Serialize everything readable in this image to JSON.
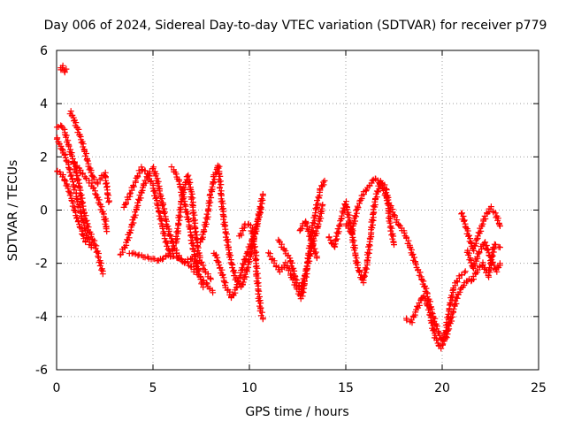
{
  "chart_data": {
    "type": "scatter",
    "title": "Day 006 of 2024, Sidereal Day-to-day VTEC variation (SDTVAR) for receiver p779",
    "xlabel": "GPS time / hours",
    "ylabel": "SDTVAR / TECUs",
    "xlim": [
      0,
      25
    ],
    "ylim": [
      -6,
      6
    ],
    "xticks": [
      0,
      5,
      10,
      15,
      20,
      25
    ],
    "yticks": [
      -6,
      -4,
      -2,
      0,
      2,
      4,
      6
    ],
    "grid": true,
    "marker": "+",
    "series": [
      {
        "name": "SDTVAR",
        "color": "#ff0000",
        "tracks": [
          [
            [
              0.0,
              3.1
            ],
            [
              0.2,
              3.2
            ],
            [
              0.4,
              3.0
            ],
            [
              0.6,
              2.5
            ],
            [
              0.8,
              2.0
            ],
            [
              1.0,
              1.5
            ],
            [
              1.2,
              0.8
            ],
            [
              1.4,
              0.0
            ],
            [
              1.6,
              -0.6
            ],
            [
              1.8,
              -1.0
            ],
            [
              2.0,
              -1.3
            ],
            [
              2.2,
              -1.8
            ],
            [
              2.4,
              -2.4
            ]
          ],
          [
            [
              0.0,
              2.7
            ],
            [
              0.2,
              2.4
            ],
            [
              0.4,
              2.1
            ],
            [
              0.6,
              1.7
            ],
            [
              0.8,
              1.2
            ],
            [
              1.0,
              0.6
            ],
            [
              1.2,
              0.0
            ],
            [
              1.4,
              -0.5
            ],
            [
              1.6,
              -1.0
            ],
            [
              1.8,
              -1.4
            ]
          ],
          [
            [
              0.0,
              1.5
            ],
            [
              0.3,
              1.3
            ],
            [
              0.5,
              1.0
            ],
            [
              0.7,
              0.6
            ],
            [
              0.9,
              0.1
            ],
            [
              1.1,
              -0.4
            ],
            [
              1.3,
              -0.8
            ],
            [
              1.5,
              -1.2
            ]
          ],
          [
            [
              0.7,
              3.7
            ],
            [
              0.9,
              3.4
            ],
            [
              1.1,
              3.0
            ],
            [
              1.3,
              2.6
            ],
            [
              1.5,
              2.1
            ],
            [
              1.7,
              1.6
            ],
            [
              1.9,
              1.2
            ],
            [
              2.1,
              1.0
            ],
            [
              2.3,
              1.2
            ],
            [
              2.5,
              1.4
            ],
            [
              2.6,
              0.9
            ],
            [
              2.7,
              0.3
            ]
          ],
          [
            [
              0.9,
              1.8
            ],
            [
              1.2,
              1.5
            ],
            [
              1.5,
              1.2
            ],
            [
              1.8,
              1.0
            ],
            [
              2.1,
              0.5
            ],
            [
              2.3,
              0.1
            ],
            [
              2.5,
              -0.3
            ],
            [
              2.6,
              -0.8
            ]
          ],
          [
            [
              0.2,
              5.3
            ],
            [
              0.3,
              5.4
            ],
            [
              0.4,
              5.2
            ],
            [
              0.5,
              5.3
            ]
          ],
          [
            [
              3.3,
              -1.7
            ],
            [
              3.6,
              -1.3
            ],
            [
              3.9,
              -0.6
            ],
            [
              4.2,
              0.2
            ],
            [
              4.5,
              0.9
            ],
            [
              4.8,
              1.4
            ],
            [
              5.0,
              1.6
            ],
            [
              5.2,
              1.2
            ],
            [
              5.5,
              0.2
            ],
            [
              5.8,
              -0.8
            ],
            [
              6.2,
              -1.6
            ],
            [
              6.6,
              -2.0
            ],
            [
              7.0,
              -1.8
            ],
            [
              7.3,
              -2.2
            ]
          ],
          [
            [
              3.5,
              0.1
            ],
            [
              3.8,
              0.6
            ],
            [
              4.1,
              1.1
            ],
            [
              4.4,
              1.6
            ],
            [
              4.7,
              1.4
            ],
            [
              5.0,
              0.9
            ],
            [
              5.3,
              0.0
            ],
            [
              5.6,
              -1.0
            ],
            [
              5.9,
              -1.7
            ],
            [
              6.2,
              -1.2
            ],
            [
              6.5,
              0.5
            ],
            [
              6.8,
              1.3
            ],
            [
              7.0,
              0.6
            ],
            [
              7.2,
              -0.8
            ],
            [
              7.4,
              -1.8
            ],
            [
              7.7,
              -2.3
            ],
            [
              8.0,
              -2.6
            ]
          ],
          [
            [
              3.8,
              -1.6
            ],
            [
              4.3,
              -1.7
            ],
            [
              4.8,
              -1.8
            ],
            [
              5.3,
              -1.9
            ],
            [
              5.8,
              -1.7
            ],
            [
              6.3,
              -1.8
            ],
            [
              6.8,
              -2.0
            ],
            [
              7.3,
              -2.4
            ],
            [
              7.8,
              -2.8
            ],
            [
              8.1,
              -3.1
            ]
          ],
          [
            [
              6.0,
              1.6
            ],
            [
              6.3,
              1.2
            ],
            [
              6.6,
              0.4
            ],
            [
              6.9,
              -0.6
            ],
            [
              7.1,
              -1.5
            ],
            [
              7.4,
              -2.4
            ],
            [
              7.6,
              -2.9
            ]
          ],
          [
            [
              7.5,
              -1.2
            ],
            [
              7.8,
              -0.3
            ],
            [
              8.0,
              0.6
            ],
            [
              8.2,
              1.3
            ],
            [
              8.4,
              1.7
            ],
            [
              8.5,
              0.8
            ],
            [
              8.7,
              -0.5
            ],
            [
              9.0,
              -1.8
            ],
            [
              9.3,
              -2.6
            ],
            [
              9.6,
              -2.9
            ],
            [
              9.9,
              -2.2
            ],
            [
              10.2,
              -1.2
            ],
            [
              10.5,
              -0.2
            ],
            [
              10.7,
              0.6
            ]
          ],
          [
            [
              8.2,
              -1.6
            ],
            [
              8.5,
              -2.2
            ],
            [
              8.8,
              -2.9
            ],
            [
              9.1,
              -3.3
            ],
            [
              9.4,
              -2.8
            ],
            [
              9.7,
              -2.0
            ],
            [
              10.0,
              -1.4
            ],
            [
              10.3,
              -0.8
            ],
            [
              10.6,
              0.1
            ]
          ],
          [
            [
              9.5,
              -1.0
            ],
            [
              9.8,
              -0.5
            ],
            [
              10.1,
              -0.6
            ],
            [
              10.3,
              -1.5
            ],
            [
              10.4,
              -2.5
            ],
            [
              10.5,
              -3.3
            ],
            [
              10.6,
              -3.8
            ],
            [
              10.7,
              -4.1
            ]
          ],
          [
            [
              11.0,
              -1.6
            ],
            [
              11.3,
              -2.0
            ],
            [
              11.6,
              -2.3
            ],
            [
              11.9,
              -2.0
            ],
            [
              12.2,
              -2.5
            ],
            [
              12.5,
              -3.0
            ],
            [
              12.7,
              -3.3
            ],
            [
              12.9,
              -2.6
            ],
            [
              13.1,
              -1.6
            ],
            [
              13.3,
              -0.6
            ],
            [
              13.5,
              0.2
            ],
            [
              13.7,
              0.8
            ],
            [
              13.9,
              1.1
            ]
          ],
          [
            [
              11.5,
              -1.1
            ],
            [
              11.8,
              -1.5
            ],
            [
              12.1,
              -1.8
            ],
            [
              12.4,
              -2.6
            ],
            [
              12.7,
              -3.0
            ],
            [
              13.0,
              -2.1
            ],
            [
              13.3,
              -1.2
            ],
            [
              13.6,
              -0.5
            ],
            [
              13.8,
              0.2
            ]
          ],
          [
            [
              12.6,
              -0.8
            ],
            [
              12.9,
              -0.4
            ],
            [
              13.2,
              -1.1
            ],
            [
              13.5,
              -1.8
            ]
          ],
          [
            [
              14.1,
              -1.0
            ],
            [
              14.4,
              -1.4
            ],
            [
              14.7,
              -0.5
            ],
            [
              15.0,
              0.3
            ],
            [
              15.3,
              -0.8
            ],
            [
              15.6,
              -2.1
            ],
            [
              15.9,
              -2.7
            ],
            [
              16.1,
              -2.0
            ],
            [
              16.3,
              -0.9
            ],
            [
              16.5,
              0.3
            ],
            [
              16.8,
              1.1
            ],
            [
              17.1,
              0.8
            ],
            [
              17.3,
              -0.5
            ],
            [
              17.5,
              -1.3
            ]
          ],
          [
            [
              15.0,
              -0.5
            ],
            [
              15.3,
              -0.9
            ],
            [
              15.6,
              0.1
            ],
            [
              15.9,
              0.6
            ],
            [
              16.2,
              0.9
            ],
            [
              16.5,
              1.2
            ],
            [
              16.8,
              1.0
            ],
            [
              17.1,
              0.5
            ],
            [
              17.4,
              0.0
            ],
            [
              17.7,
              -0.5
            ],
            [
              18.0,
              -0.8
            ],
            [
              18.3,
              -1.3
            ],
            [
              18.6,
              -2.0
            ],
            [
              18.9,
              -2.5
            ],
            [
              19.2,
              -3.1
            ],
            [
              19.5,
              -3.9
            ],
            [
              19.8,
              -4.6
            ],
            [
              20.0,
              -4.9
            ],
            [
              20.2,
              -4.5
            ],
            [
              20.4,
              -3.6
            ],
            [
              20.6,
              -2.9
            ],
            [
              20.9,
              -2.5
            ],
            [
              21.2,
              -2.3
            ]
          ],
          [
            [
              18.1,
              -4.1
            ],
            [
              18.4,
              -4.2
            ],
            [
              18.7,
              -3.7
            ],
            [
              19.0,
              -3.2
            ],
            [
              19.3,
              -3.7
            ],
            [
              19.6,
              -4.7
            ],
            [
              19.9,
              -5.2
            ],
            [
              20.2,
              -4.8
            ],
            [
              20.5,
              -4.0
            ],
            [
              20.8,
              -3.2
            ],
            [
              21.1,
              -2.8
            ],
            [
              21.4,
              -2.6
            ]
          ],
          [
            [
              21.0,
              -0.1
            ],
            [
              21.3,
              -0.8
            ],
            [
              21.6,
              -1.5
            ],
            [
              21.9,
              -0.9
            ],
            [
              22.2,
              -0.3
            ],
            [
              22.5,
              0.1
            ],
            [
              22.8,
              -0.2
            ],
            [
              23.0,
              -0.6
            ]
          ],
          [
            [
              21.3,
              -1.5
            ],
            [
              21.6,
              -2.2
            ],
            [
              21.9,
              -1.6
            ],
            [
              22.2,
              -1.2
            ],
            [
              22.5,
              -1.8
            ],
            [
              22.8,
              -2.3
            ],
            [
              23.0,
              -2.0
            ]
          ],
          [
            [
              21.5,
              -2.7
            ],
            [
              21.8,
              -2.3
            ],
            [
              22.1,
              -2.0
            ],
            [
              22.4,
              -2.5
            ],
            [
              22.7,
              -1.3
            ],
            [
              23.0,
              -1.4
            ]
          ]
        ]
      }
    ]
  }
}
